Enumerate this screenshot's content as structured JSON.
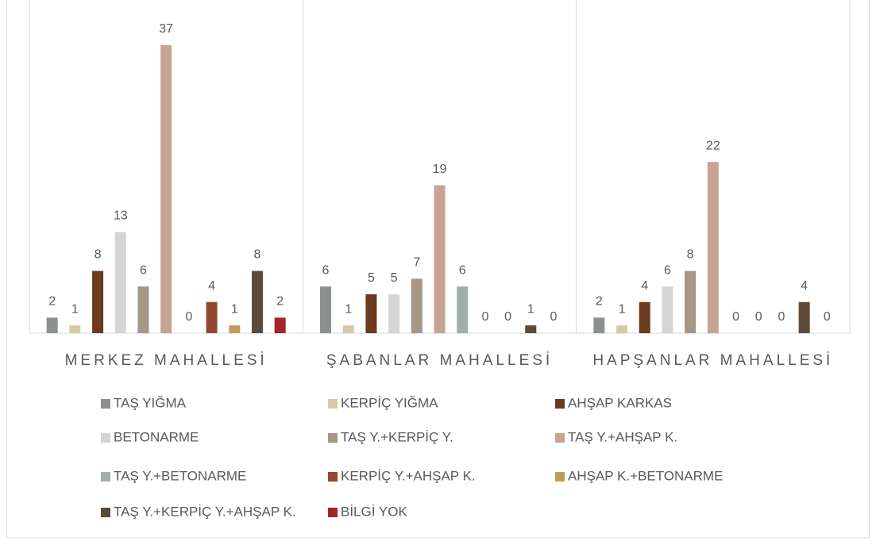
{
  "chart_data": {
    "type": "bar",
    "categories": [
      "MERKEZ MAHALLESİ",
      "ŞABANLAR MAHALLESİ",
      "HAPŞANLAR MAHALLESİ"
    ],
    "series": [
      {
        "name": "TAŞ YIĞMA",
        "color": "#8c9090",
        "values": [
          2,
          6,
          2
        ]
      },
      {
        "name": "KERPİÇ YIĞMA",
        "color": "#d3cba5",
        "values": [
          1,
          1,
          1
        ]
      },
      {
        "name": "AHŞAP KARKAS",
        "color": "#6b3a1f",
        "values": [
          8,
          5,
          4
        ]
      },
      {
        "name": "BETONARME",
        "color": "#d5d5d5",
        "values": [
          13,
          5,
          6
        ]
      },
      {
        "name": "TAŞ Y.+KERPİÇ Y.",
        "color": "#a69683",
        "values": [
          6,
          7,
          8
        ]
      },
      {
        "name": "TAŞ Y.+AHŞAP K.",
        "color": "#c8a494",
        "values": [
          37,
          19,
          22
        ]
      },
      {
        "name": "TAŞ Y.+BETONARME",
        "color": "#9fb0ab",
        "values": [
          0,
          6,
          0
        ]
      },
      {
        "name": "KERPİÇ Y.+AHŞAP K.",
        "color": "#944532",
        "values": [
          4,
          0,
          0
        ]
      },
      {
        "name": "AHŞAP K.+BETONARME",
        "color": "#c09a5a",
        "values": [
          1,
          0,
          0
        ]
      },
      {
        "name": "TAŞ Y.+KERPİÇ Y.+AHŞAP K.",
        "color": "#5e4a39",
        "values": [
          8,
          1,
          4
        ]
      },
      {
        "name": "BİLGİ YOK",
        "color": "#a32525",
        "values": [
          2,
          0,
          0
        ]
      }
    ]
  }
}
